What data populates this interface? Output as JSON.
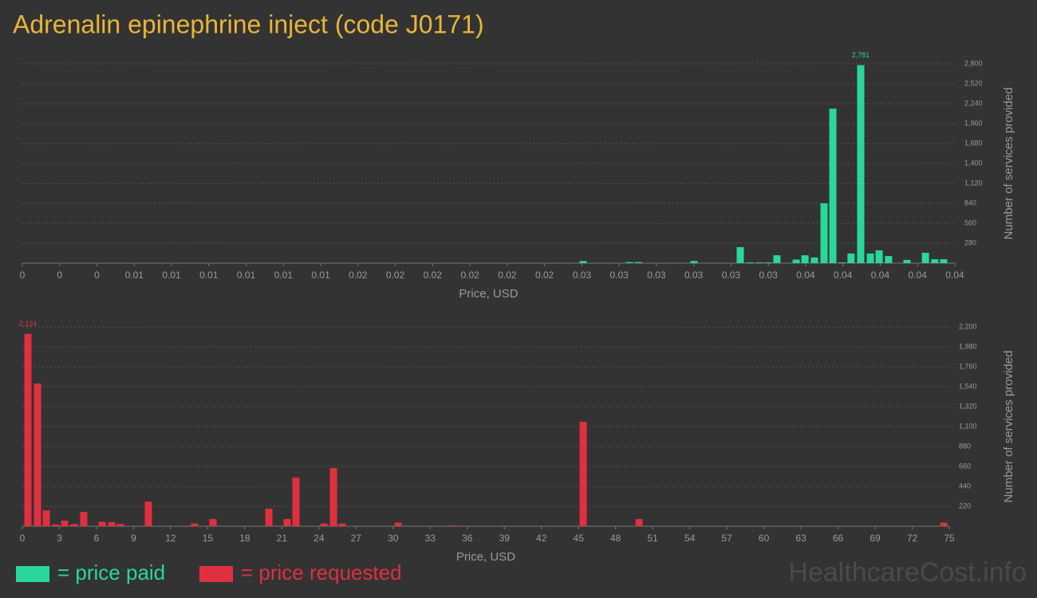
{
  "chart_data": [
    {
      "type": "bar",
      "title": "Adrenalin epinephrine inject (code J0171)",
      "x_label": "Price, USD",
      "y_label": "Number of services provided",
      "xlim": [
        0,
        0.0425
      ],
      "xticks": [
        {
          "value": 0,
          "label": "0"
        },
        {
          "value": 0.0017,
          "label": "0"
        },
        {
          "value": 0.0034,
          "label": "0"
        },
        {
          "value": 0.0051,
          "label": "0.01"
        },
        {
          "value": 0.0068,
          "label": "0.01"
        },
        {
          "value": 0.0085,
          "label": "0.01"
        },
        {
          "value": 0.0102,
          "label": "0.01"
        },
        {
          "value": 0.0119,
          "label": "0.01"
        },
        {
          "value": 0.0136,
          "label": "0.01"
        },
        {
          "value": 0.0153,
          "label": "0.02"
        },
        {
          "value": 0.017,
          "label": "0.02"
        },
        {
          "value": 0.0187,
          "label": "0.02"
        },
        {
          "value": 0.0204,
          "label": "0.02"
        },
        {
          "value": 0.0221,
          "label": "0.02"
        },
        {
          "value": 0.0238,
          "label": "0.02"
        },
        {
          "value": 0.0255,
          "label": "0.03"
        },
        {
          "value": 0.0272,
          "label": "0.03"
        },
        {
          "value": 0.0289,
          "label": "0.03"
        },
        {
          "value": 0.0306,
          "label": "0.03"
        },
        {
          "value": 0.0323,
          "label": "0.03"
        },
        {
          "value": 0.034,
          "label": "0.03"
        },
        {
          "value": 0.0357,
          "label": "0.04"
        },
        {
          "value": 0.0374,
          "label": "0.04"
        },
        {
          "value": 0.0391,
          "label": "0.04"
        },
        {
          "value": 0.0408,
          "label": "0.04"
        },
        {
          "value": 0.0425,
          "label": "0.04"
        }
      ],
      "ylim": [
        0,
        2800
      ],
      "yticks": [
        280,
        560,
        840,
        {
          "value": 1120,
          "label": "1,120"
        },
        {
          "value": 1400,
          "label": "1,400"
        },
        {
          "value": 1680,
          "label": "1,680"
        },
        {
          "value": 1960,
          "label": "1,960"
        },
        {
          "value": 2240,
          "label": "2,240"
        },
        {
          "value": 2520,
          "label": "2,520"
        },
        {
          "value": 2800,
          "label": "2,800"
        }
      ],
      "grid": true,
      "series": [
        {
          "name": "= price paid",
          "color": "#2ad79a",
          "x": [
            0.02556,
            0.02767,
            0.02807,
            0.03061,
            0.03272,
            0.03316,
            0.03359,
            0.03399,
            0.03439,
            0.03527,
            0.03567,
            0.0361,
            0.03654,
            0.03694,
            0.03737,
            0.03777,
            0.03821,
            0.03865,
            0.03905,
            0.03948,
            0.04032,
            0.04116,
            0.04159,
            0.04199
          ],
          "values": [
            30,
            15,
            15,
            30,
            225,
            10,
            10,
            10,
            110,
            50,
            110,
            80,
            840,
            2170,
            10,
            135,
            2781,
            135,
            180,
            100,
            45,
            145,
            55,
            55
          ],
          "value_labels": [
            null,
            null,
            null,
            null,
            null,
            null,
            null,
            null,
            null,
            null,
            null,
            null,
            null,
            null,
            null,
            null,
            "2,781",
            null,
            null,
            null,
            null,
            null,
            null,
            null
          ]
        }
      ]
    },
    {
      "type": "bar",
      "x_label": "Price, USD",
      "y_label": "Number of services provided",
      "xlim": [
        0,
        75
      ],
      "xticks": [
        0,
        3,
        6,
        9,
        12,
        15,
        18,
        21,
        24,
        27,
        30,
        33,
        36,
        39,
        42,
        45,
        48,
        51,
        54,
        57,
        60,
        63,
        66,
        69,
        72,
        75
      ],
      "ylim": [
        0,
        2200
      ],
      "yticks": [
        220,
        440,
        660,
        880,
        {
          "value": 1100,
          "label": "1,100"
        },
        {
          "value": 1320,
          "label": "1,320"
        },
        {
          "value": 1540,
          "label": "1,540"
        },
        {
          "value": 1760,
          "label": "1,760"
        },
        {
          "value": 1980,
          "label": "1,980"
        },
        {
          "value": 2200,
          "label": "2,200"
        }
      ],
      "grid": true,
      "series": [
        {
          "name": "= price requested",
          "color": "#e0303f",
          "x": [
            0.45,
            1.23,
            1.94,
            2.71,
            3.42,
            4.2,
            4.97,
            6.46,
            7.23,
            7.94,
            10.2,
            13.94,
            15.43,
            19.95,
            21.43,
            22.14,
            24.4,
            25.18,
            25.89,
            30.41,
            34.93,
            45.38,
            49.9,
            74.56
          ],
          "values": [
            2124,
            1575,
            176,
            20,
            62,
            25,
            158,
            50,
            45,
            25,
            273,
            30,
            80,
            194,
            80,
            537,
            30,
            642,
            30,
            40,
            10,
            1153,
            80,
            40
          ],
          "value_labels": [
            "2,124",
            null,
            null,
            null,
            null,
            null,
            null,
            null,
            null,
            null,
            null,
            null,
            null,
            null,
            null,
            null,
            null,
            null,
            null,
            null,
            null,
            null,
            null,
            null
          ]
        }
      ]
    }
  ],
  "watermark": "HealthcareCost.info"
}
